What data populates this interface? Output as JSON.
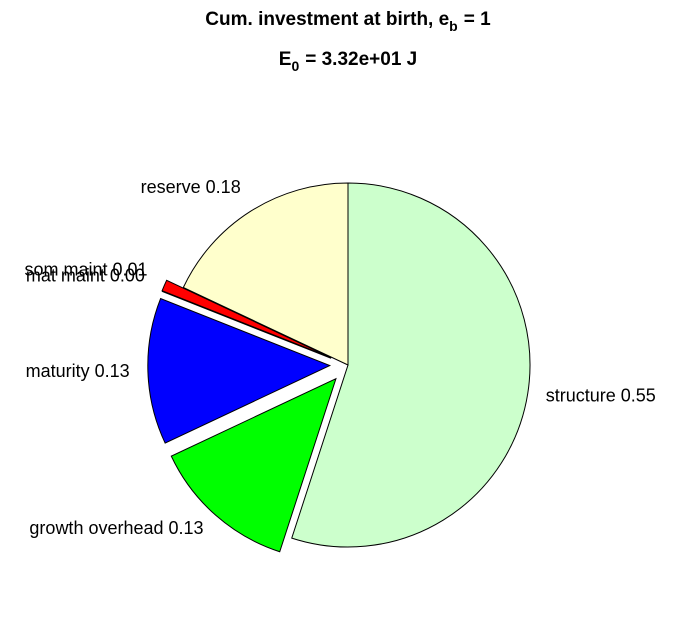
{
  "chart_data": {
    "type": "pie",
    "title": [
      "Cum. investment at birth, e",
      "b",
      "= 1"
    ],
    "subtitle": [
      "E",
      "0",
      "= 3.32e+01 J"
    ],
    "categories": [
      "structure",
      "growth overhead",
      "maturity",
      "mat maint",
      "som maint",
      "reserve"
    ],
    "values": [
      0.55,
      0.13,
      0.13,
      0,
      0.01,
      0.18
    ],
    "value_labels": [
      "0.55",
      "0.13",
      "0.13",
      "0.00",
      "0.01",
      "0.18"
    ],
    "colors": [
      "#ccffcc",
      "#00ff00",
      "#0000ff",
      "#ff00ff",
      "#ff0000",
      "#ffffcc"
    ],
    "explode": [
      false,
      true,
      true,
      true,
      true,
      false
    ]
  }
}
